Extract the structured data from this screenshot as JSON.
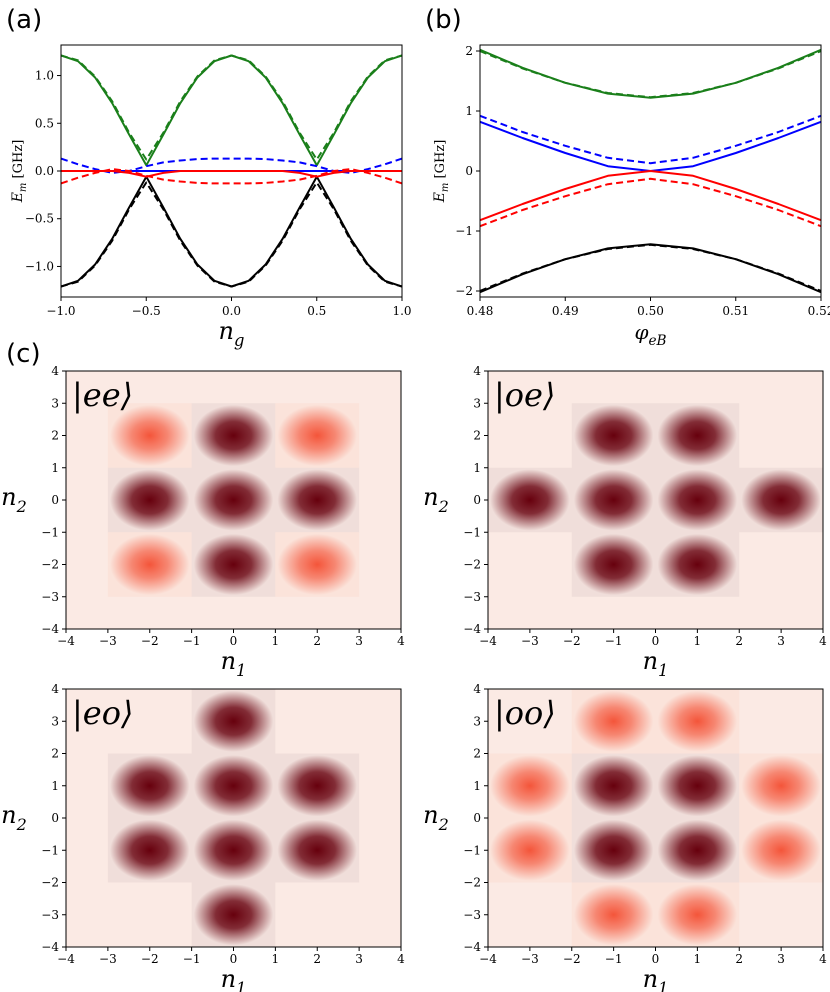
{
  "chart_data": [
    {
      "panel": "(a)",
      "type": "line",
      "xlabel_base": "n",
      "xlabel_sub": "g",
      "ylabel_base": "E",
      "ylabel_sub": "m",
      "ylabel_unit": "[GHz]",
      "xlim": [
        -1.0,
        1.0
      ],
      "ylim": [
        -1.32,
        1.32
      ],
      "xticks": [
        "−1.0",
        "−0.5",
        "0.0",
        "0.5",
        "1.0"
      ],
      "xtick_values": [
        -1.0,
        -0.5,
        0.0,
        0.5,
        1.0
      ],
      "yticks": [
        "−1.0",
        "−0.5",
        "0.0",
        "0.5",
        "1.0"
      ],
      "ytick_values": [
        -1.0,
        -0.5,
        0.0,
        0.5,
        1.0
      ],
      "colors": {
        "green": "#1a7f1a",
        "blue": "#0000ff",
        "red": "#ff0000",
        "black": "#000000"
      },
      "series": [
        {
          "color": "green",
          "style": "solid",
          "x": [
            -1.0,
            -0.9,
            -0.8,
            -0.7,
            -0.6,
            -0.5,
            -0.4,
            -0.3,
            -0.2,
            -0.1,
            0.0,
            0.1,
            0.2,
            0.3,
            0.4,
            0.5,
            0.6,
            0.7,
            0.8,
            0.9,
            1.0
          ],
          "y": [
            1.21,
            1.15,
            0.98,
            0.71,
            0.38,
            0.06,
            0.38,
            0.71,
            0.98,
            1.15,
            1.21,
            1.15,
            0.98,
            0.71,
            0.38,
            0.06,
            0.38,
            0.71,
            0.98,
            1.15,
            1.21
          ]
        },
        {
          "color": "green",
          "style": "dashed",
          "x": [
            -1.0,
            -0.9,
            -0.8,
            -0.7,
            -0.6,
            -0.5,
            -0.4,
            -0.3,
            -0.2,
            -0.1,
            0.0,
            0.1,
            0.2,
            0.3,
            0.4,
            0.5,
            0.6,
            0.7,
            0.8,
            0.9,
            1.0
          ],
          "y": [
            1.21,
            1.16,
            0.99,
            0.73,
            0.4,
            0.12,
            0.4,
            0.73,
            0.99,
            1.16,
            1.21,
            1.16,
            0.99,
            0.73,
            0.4,
            0.12,
            0.4,
            0.73,
            0.99,
            1.16,
            1.21
          ]
        },
        {
          "color": "black",
          "style": "solid",
          "x": [
            -1.0,
            -0.9,
            -0.8,
            -0.7,
            -0.6,
            -0.5,
            -0.4,
            -0.3,
            -0.2,
            -0.1,
            0.0,
            0.1,
            0.2,
            0.3,
            0.4,
            0.5,
            0.6,
            0.7,
            0.8,
            0.9,
            1.0
          ],
          "y": [
            -1.21,
            -1.15,
            -0.98,
            -0.71,
            -0.38,
            -0.06,
            -0.38,
            -0.71,
            -0.98,
            -1.15,
            -1.21,
            -1.15,
            -0.98,
            -0.71,
            -0.38,
            -0.06,
            -0.38,
            -0.71,
            -0.98,
            -1.15,
            -1.21
          ]
        },
        {
          "color": "black",
          "style": "dashed",
          "x": [
            -1.0,
            -0.9,
            -0.8,
            -0.7,
            -0.6,
            -0.5,
            -0.4,
            -0.3,
            -0.2,
            -0.1,
            0.0,
            0.1,
            0.2,
            0.3,
            0.4,
            0.5,
            0.6,
            0.7,
            0.8,
            0.9,
            1.0
          ],
          "y": [
            -1.21,
            -1.16,
            -0.99,
            -0.73,
            -0.4,
            -0.12,
            -0.4,
            -0.73,
            -0.99,
            -1.16,
            -1.21,
            -1.16,
            -0.99,
            -0.73,
            -0.4,
            -0.12,
            -0.4,
            -0.73,
            -0.99,
            -1.16,
            -1.21
          ]
        },
        {
          "color": "blue",
          "style": "solid",
          "x": [
            -1.0,
            -0.5,
            0.0,
            0.5,
            1.0
          ],
          "y": [
            0.0,
            0.0,
            0.0,
            0.0,
            0.0
          ]
        },
        {
          "color": "blue",
          "style": "dashed",
          "x": [
            -1.0,
            -0.9,
            -0.8,
            -0.7,
            -0.6,
            -0.5,
            -0.4,
            -0.3,
            -0.2,
            -0.1,
            0.0,
            0.1,
            0.2,
            0.3,
            0.4,
            0.5,
            0.6,
            0.7,
            0.8,
            0.9,
            1.0
          ],
          "y": [
            0.13,
            0.07,
            0.02,
            -0.02,
            0.0,
            0.05,
            0.09,
            0.11,
            0.125,
            0.13,
            0.13,
            0.13,
            0.125,
            0.11,
            0.09,
            0.05,
            0.0,
            -0.02,
            0.02,
            0.07,
            0.13
          ]
        },
        {
          "color": "red",
          "style": "solid",
          "x": [
            -1.0,
            -0.9,
            -0.8,
            -0.7,
            -0.6,
            -0.5,
            -0.4,
            -0.3,
            -0.2,
            -0.1,
            0.0,
            0.1,
            0.2,
            0.3,
            0.4,
            0.5,
            0.6,
            0.7,
            0.8,
            0.9,
            1.0
          ],
          "y": [
            0.0,
            0.0,
            0.0,
            0.0,
            -0.02,
            -0.06,
            -0.02,
            0.0,
            0.0,
            0.0,
            0.0,
            0.0,
            0.0,
            0.0,
            -0.02,
            -0.06,
            -0.02,
            0.0,
            0.0,
            0.0,
            0.0
          ]
        },
        {
          "color": "red",
          "style": "dashed",
          "x": [
            -1.0,
            -0.9,
            -0.8,
            -0.7,
            -0.6,
            -0.5,
            -0.4,
            -0.3,
            -0.2,
            -0.1,
            0.0,
            0.1,
            0.2,
            0.3,
            0.4,
            0.5,
            0.6,
            0.7,
            0.8,
            0.9,
            1.0
          ],
          "y": [
            -0.13,
            -0.07,
            -0.02,
            0.02,
            0.0,
            -0.05,
            -0.09,
            -0.11,
            -0.125,
            -0.13,
            -0.13,
            -0.13,
            -0.125,
            -0.11,
            -0.09,
            -0.05,
            0.0,
            0.02,
            -0.02,
            -0.07,
            -0.13
          ]
        }
      ]
    },
    {
      "panel": "(b)",
      "type": "line",
      "xlabel_base": "φ",
      "xlabel_sub": "eB",
      "ylabel_base": "E",
      "ylabel_sub": "m",
      "ylabel_unit": "[GHz]",
      "xlim": [
        0.48,
        0.52
      ],
      "ylim": [
        -2.1,
        2.1
      ],
      "xticks": [
        "0.48",
        "0.49",
        "0.50",
        "0.51",
        "0.52"
      ],
      "xtick_values": [
        0.48,
        0.49,
        0.5,
        0.51,
        0.52
      ],
      "yticks": [
        "−2",
        "−1",
        "0",
        "1",
        "2"
      ],
      "ytick_values": [
        -2,
        -1,
        0,
        1,
        2
      ],
      "colors": {
        "green": "#1a7f1a",
        "blue": "#0000ff",
        "red": "#ff0000",
        "black": "#000000"
      },
      "series": [
        {
          "color": "green",
          "style": "solid",
          "x": [
            0.48,
            0.485,
            0.49,
            0.495,
            0.5,
            0.505,
            0.51,
            0.515,
            0.52
          ],
          "y": [
            2.02,
            1.72,
            1.47,
            1.29,
            1.22,
            1.29,
            1.47,
            1.72,
            2.02
          ]
        },
        {
          "color": "green",
          "style": "dashed",
          "x": [
            0.48,
            0.485,
            0.49,
            0.495,
            0.5,
            0.505,
            0.51,
            0.515,
            0.52
          ],
          "y": [
            2.0,
            1.71,
            1.47,
            1.3,
            1.23,
            1.3,
            1.47,
            1.71,
            2.0
          ]
        },
        {
          "color": "blue",
          "style": "solid",
          "x": [
            0.48,
            0.485,
            0.49,
            0.495,
            0.5,
            0.505,
            0.51,
            0.515,
            0.52
          ],
          "y": [
            0.82,
            0.55,
            0.3,
            0.08,
            0.0,
            0.08,
            0.3,
            0.55,
            0.82
          ]
        },
        {
          "color": "blue",
          "style": "dashed",
          "x": [
            0.48,
            0.485,
            0.49,
            0.495,
            0.5,
            0.505,
            0.51,
            0.515,
            0.52
          ],
          "y": [
            0.92,
            0.65,
            0.42,
            0.22,
            0.13,
            0.22,
            0.42,
            0.65,
            0.92
          ]
        },
        {
          "color": "red",
          "style": "solid",
          "x": [
            0.48,
            0.485,
            0.49,
            0.495,
            0.5,
            0.505,
            0.51,
            0.515,
            0.52
          ],
          "y": [
            -0.82,
            -0.55,
            -0.3,
            -0.08,
            0.0,
            -0.08,
            -0.3,
            -0.55,
            -0.82
          ]
        },
        {
          "color": "red",
          "style": "dashed",
          "x": [
            0.48,
            0.485,
            0.49,
            0.495,
            0.5,
            0.505,
            0.51,
            0.515,
            0.52
          ],
          "y": [
            -0.92,
            -0.65,
            -0.42,
            -0.22,
            -0.13,
            -0.22,
            -0.42,
            -0.65,
            -0.92
          ]
        },
        {
          "color": "black",
          "style": "solid",
          "x": [
            0.48,
            0.485,
            0.49,
            0.495,
            0.5,
            0.505,
            0.51,
            0.515,
            0.52
          ],
          "y": [
            -2.02,
            -1.72,
            -1.47,
            -1.29,
            -1.22,
            -1.29,
            -1.47,
            -1.72,
            -2.02
          ]
        },
        {
          "color": "black",
          "style": "dashed",
          "x": [
            0.48,
            0.485,
            0.49,
            0.495,
            0.5,
            0.505,
            0.51,
            0.515,
            0.52
          ],
          "y": [
            -2.0,
            -1.71,
            -1.47,
            -1.3,
            -1.23,
            -1.3,
            -1.47,
            -1.71,
            -2.0
          ]
        }
      ]
    },
    {
      "panel": "(c)",
      "type": "heatmap",
      "xlabel_base": "n",
      "xlabel_sub": "1",
      "ylabel_base": "n",
      "ylabel_sub": "2",
      "xlim": [
        -4,
        4
      ],
      "ylim": [
        -4,
        4
      ],
      "ticks": [
        "−4",
        "−3",
        "−2",
        "−1",
        "0",
        "1",
        "2",
        "3",
        "4"
      ],
      "tick_values": [
        -4,
        -3,
        -2,
        -1,
        0,
        1,
        2,
        3,
        4
      ],
      "colors": {
        "background": "#fbeae4",
        "dark": "#67000d",
        "medium": "#f4553a"
      },
      "maps": [
        {
          "state_label": "|ee⟩",
          "blobs": [
            {
              "n1": -2,
              "n2": 2,
              "level": "medium"
            },
            {
              "n1": 0,
              "n2": 2,
              "level": "dark"
            },
            {
              "n1": 2,
              "n2": 2,
              "level": "medium"
            },
            {
              "n1": -2,
              "n2": 0,
              "level": "dark"
            },
            {
              "n1": 0,
              "n2": 0,
              "level": "dark"
            },
            {
              "n1": 2,
              "n2": 0,
              "level": "dark"
            },
            {
              "n1": -2,
              "n2": -2,
              "level": "medium"
            },
            {
              "n1": 0,
              "n2": -2,
              "level": "dark"
            },
            {
              "n1": 2,
              "n2": -2,
              "level": "medium"
            }
          ]
        },
        {
          "state_label": "|oe⟩",
          "blobs": [
            {
              "n1": -1,
              "n2": 2,
              "level": "dark"
            },
            {
              "n1": 1,
              "n2": 2,
              "level": "dark"
            },
            {
              "n1": -3,
              "n2": 0,
              "level": "dark"
            },
            {
              "n1": -1,
              "n2": 0,
              "level": "dark"
            },
            {
              "n1": 1,
              "n2": 0,
              "level": "dark"
            },
            {
              "n1": 3,
              "n2": 0,
              "level": "dark"
            },
            {
              "n1": -1,
              "n2": -2,
              "level": "dark"
            },
            {
              "n1": 1,
              "n2": -2,
              "level": "dark"
            }
          ]
        },
        {
          "state_label": "|eo⟩",
          "blobs": [
            {
              "n1": 0,
              "n2": 3,
              "level": "dark"
            },
            {
              "n1": -2,
              "n2": 1,
              "level": "dark"
            },
            {
              "n1": 0,
              "n2": 1,
              "level": "dark"
            },
            {
              "n1": 2,
              "n2": 1,
              "level": "dark"
            },
            {
              "n1": -2,
              "n2": -1,
              "level": "dark"
            },
            {
              "n1": 0,
              "n2": -1,
              "level": "dark"
            },
            {
              "n1": 2,
              "n2": -1,
              "level": "dark"
            },
            {
              "n1": 0,
              "n2": -3,
              "level": "dark"
            }
          ]
        },
        {
          "state_label": "|oo⟩",
          "blobs": [
            {
              "n1": -1,
              "n2": 3,
              "level": "medium"
            },
            {
              "n1": 1,
              "n2": 3,
              "level": "medium"
            },
            {
              "n1": -3,
              "n2": 1,
              "level": "medium"
            },
            {
              "n1": -1,
              "n2": 1,
              "level": "dark"
            },
            {
              "n1": 1,
              "n2": 1,
              "level": "dark"
            },
            {
              "n1": 3,
              "n2": 1,
              "level": "medium"
            },
            {
              "n1": -3,
              "n2": -1,
              "level": "medium"
            },
            {
              "n1": -1,
              "n2": -1,
              "level": "dark"
            },
            {
              "n1": 1,
              "n2": -1,
              "level": "dark"
            },
            {
              "n1": 3,
              "n2": -1,
              "level": "medium"
            },
            {
              "n1": -1,
              "n2": -3,
              "level": "medium"
            },
            {
              "n1": 1,
              "n2": -3,
              "level": "medium"
            }
          ]
        }
      ]
    }
  ]
}
